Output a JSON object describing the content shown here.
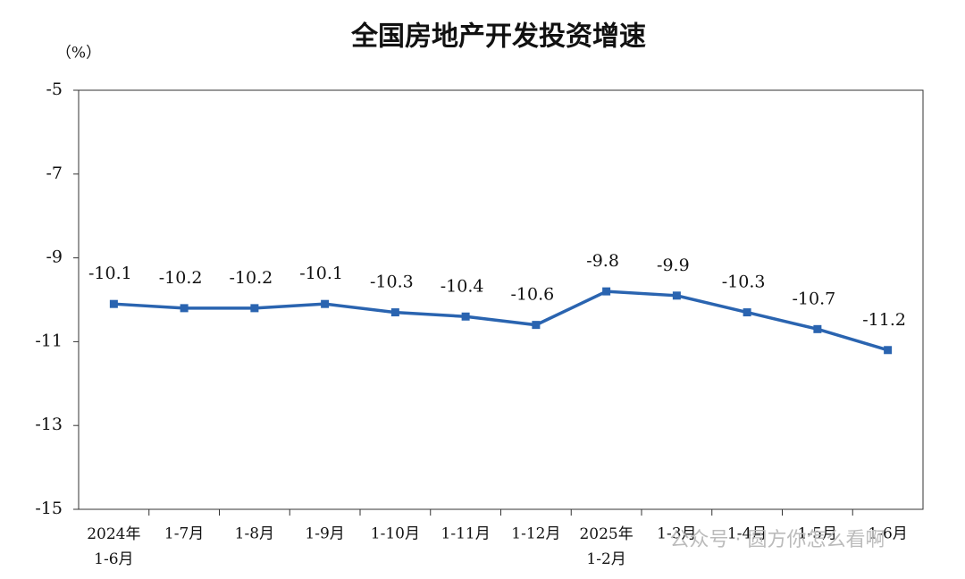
{
  "chart_data": {
    "type": "line",
    "title": "全国房地产开发投资增速",
    "y_unit": "（%）",
    "categories": [
      "2024年\n1-6月",
      "1-7月",
      "1-8月",
      "1-9月",
      "1-10月",
      "1-11月",
      "1-12月",
      "2025年\n1-2月",
      "1-3月",
      "1-4月",
      "1-5月",
      "1-6月"
    ],
    "values": [
      -10.1,
      -10.2,
      -10.2,
      -10.1,
      -10.3,
      -10.4,
      -10.6,
      -9.8,
      -9.9,
      -10.3,
      -10.7,
      -11.2
    ],
    "color": "#2a64b0",
    "ylim": [
      -15,
      -5
    ],
    "yticks": [
      -5,
      -7,
      -9,
      -11,
      -13,
      -15
    ],
    "grid": false,
    "watermark": "公众号 · 圆方你怎么看啊"
  }
}
